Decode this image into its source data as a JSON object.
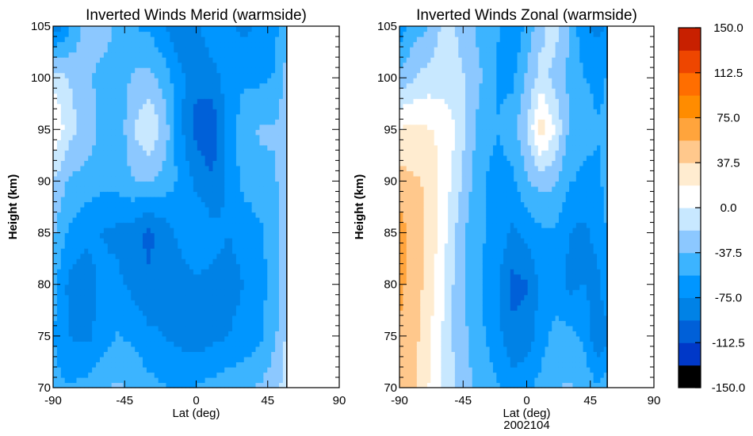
{
  "chart_data": [
    {
      "type": "heatmap",
      "subtype": "filled-contour",
      "title": "Inverted Winds Merid (warmside)",
      "xlabel": "Lat (deg)",
      "ylabel": "Height (km)",
      "xlim": [
        -90,
        90
      ],
      "ylim": [
        70,
        105
      ],
      "xticks": [
        "-90",
        "-45",
        "0",
        "45",
        "90"
      ],
      "yticks": [
        "70",
        "75",
        "80",
        "85",
        "90",
        "95",
        "100",
        "105"
      ],
      "data_lat_range": [
        -90,
        57
      ],
      "x": [
        -90,
        -80,
        -70,
        -60,
        -50,
        -40,
        -30,
        -20,
        -10,
        0,
        10,
        20,
        30,
        40,
        50,
        57
      ],
      "y": [
        70,
        75,
        80,
        85,
        90,
        95,
        100,
        105
      ],
      "z": [
        [
          -50,
          -55,
          -50,
          -40,
          -35,
          -40,
          -50,
          -55,
          -60,
          -55,
          -50,
          -45,
          -40,
          -35,
          -25,
          -10
        ],
        [
          -55,
          -75,
          -80,
          -70,
          -55,
          -60,
          -70,
          -75,
          -80,
          -85,
          -80,
          -75,
          -70,
          -60,
          -40,
          -15
        ],
        [
          -50,
          -80,
          -85,
          -70,
          -70,
          -80,
          -90,
          -85,
          -85,
          -80,
          -80,
          -80,
          -75,
          -65,
          -45,
          -20
        ],
        [
          -35,
          -60,
          -70,
          -75,
          -80,
          -85,
          -100,
          -85,
          -70,
          -55,
          -70,
          -75,
          -70,
          -60,
          -45,
          -20
        ],
        [
          -20,
          -40,
          -45,
          -50,
          -50,
          -40,
          -35,
          -45,
          -60,
          -80,
          -90,
          -70,
          -50,
          -45,
          -40,
          -20
        ],
        [
          20,
          -10,
          -25,
          -40,
          -55,
          -20,
          0,
          -25,
          -70,
          -100,
          -110,
          -70,
          -45,
          -35,
          -35,
          -20
        ],
        [
          -5,
          -20,
          -30,
          -45,
          -50,
          -35,
          -30,
          -45,
          -70,
          -90,
          -85,
          -65,
          -60,
          -60,
          -55,
          -30
        ],
        [
          -90,
          -60,
          -30,
          -25,
          -40,
          -55,
          -60,
          -75,
          -90,
          -80,
          -60,
          -70,
          -80,
          -70,
          -60,
          -40
        ]
      ]
    },
    {
      "type": "heatmap",
      "subtype": "filled-contour",
      "title": "Inverted Winds Zonal (warmside)",
      "xlabel": "Lat (deg)",
      "xlabel2": "2002104",
      "ylabel": "Height (km)",
      "xlim": [
        -90,
        90
      ],
      "ylim": [
        70,
        105
      ],
      "xticks": [
        "-90",
        "-45",
        "0",
        "45",
        "90"
      ],
      "yticks": [
        "70",
        "75",
        "80",
        "85",
        "90",
        "95",
        "100",
        "105"
      ],
      "data_lat_range": [
        -90,
        57
      ],
      "x": [
        -90,
        -80,
        -70,
        -60,
        -50,
        -40,
        -30,
        -20,
        -10,
        0,
        10,
        20,
        30,
        40,
        50,
        57
      ],
      "y": [
        70,
        75,
        80,
        85,
        90,
        95,
        100,
        105
      ],
      "z": [
        [
          45,
          40,
          20,
          0,
          -20,
          -35,
          -45,
          -55,
          -65,
          -60,
          -50,
          -40,
          -35,
          -40,
          -55,
          -45
        ],
        [
          55,
          45,
          25,
          0,
          -25,
          -40,
          -55,
          -70,
          -90,
          -85,
          -65,
          -50,
          -50,
          -60,
          -90,
          -80
        ],
        [
          60,
          50,
          30,
          5,
          -25,
          -45,
          -60,
          -75,
          -100,
          -95,
          -70,
          -65,
          -80,
          -75,
          -80,
          -60
        ],
        [
          65,
          50,
          35,
          10,
          -20,
          -45,
          -55,
          -60,
          -80,
          -70,
          -60,
          -60,
          -75,
          -80,
          -70,
          -55
        ],
        [
          45,
          40,
          35,
          15,
          -10,
          -35,
          -55,
          -65,
          -60,
          -40,
          -30,
          -35,
          -55,
          -60,
          -60,
          -50
        ],
        [
          20,
          25,
          20,
          15,
          0,
          -30,
          -50,
          -55,
          -45,
          -20,
          30,
          0,
          -40,
          -50,
          -55,
          -55
        ],
        [
          -30,
          -20,
          -10,
          -10,
          -10,
          -25,
          -40,
          -60,
          -60,
          -35,
          -10,
          -25,
          -40,
          -55,
          -60,
          -55
        ],
        [
          -70,
          -45,
          -40,
          -15,
          -20,
          -35,
          -45,
          -55,
          -75,
          -50,
          -25,
          -10,
          -40,
          -70,
          -80,
          -75
        ]
      ]
    }
  ],
  "colorbar": {
    "ticks": [
      "150.0",
      "112.5",
      "75.0",
      "37.5",
      "0.0",
      "-37.5",
      "-75.0",
      "-112.5",
      "-150.0"
    ],
    "min": -150,
    "max": 150,
    "levels": [
      -150,
      -131.25,
      -112.5,
      -93.75,
      -75,
      -56.25,
      -37.5,
      -18.75,
      0,
      18.75,
      37.5,
      56.25,
      75,
      93.75,
      112.5,
      131.25,
      150
    ],
    "colors": [
      "#000000",
      "#0038c8",
      "#0060d8",
      "#0082e6",
      "#0096ff",
      "#3cb4ff",
      "#8cc8ff",
      "#c8e8ff",
      "#ffffff",
      "#ffecd0",
      "#ffc88c",
      "#ffa43c",
      "#ff8c00",
      "#ff6e00",
      "#ee4600",
      "#c82000"
    ]
  }
}
